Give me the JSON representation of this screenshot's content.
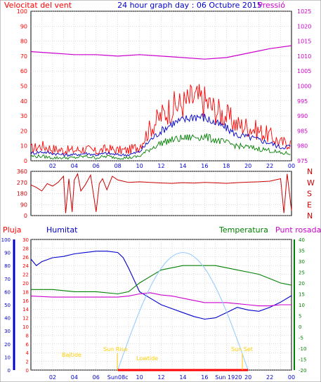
{
  "colors": {
    "red": "#ff0000",
    "blue": "#0000cc",
    "green": "#008000",
    "magenta": "#cc00cc",
    "grid": "#bbbbbb",
    "lightblue": "#99ccff",
    "yellow": "#ffcc00",
    "darkred": "#cc0000"
  },
  "header": {
    "left_label": "Velocitat del vent",
    "title": "24 hour graph day : 06 Octubre 2015",
    "right_label": "Pressió"
  },
  "lower_header": {
    "rain_label": "Pluja",
    "humidity_label": "Humitat",
    "temperature_label": "Temperatura",
    "dewpoint_label": "Punt rosada"
  },
  "annotations": {
    "sunrise": "Sun Rise",
    "sunset": "Sun Set",
    "high_tide": "Bajtide",
    "low_tide": "Lowtide",
    "sunrise_time": "Sun08c",
    "sunset_time": "Sun 1920"
  },
  "chart_data": [
    {
      "type": "line",
      "name": "wind-pressure",
      "x_ticks": [
        "02",
        "04",
        "06",
        "08",
        "10",
        "12",
        "14",
        "16",
        "18",
        "20",
        "22",
        "00"
      ],
      "ylim_left": [
        0,
        100
      ],
      "yticks_left": [
        "0",
        "10",
        "20",
        "30",
        "40",
        "50",
        "60",
        "70",
        "80",
        "90",
        "100"
      ],
      "ylim_right": [
        975,
        1025
      ],
      "yticks_right": [
        "975",
        "980",
        "985",
        "990",
        "995",
        "1000",
        "1005",
        "1010",
        "1015",
        "1020",
        "1025"
      ],
      "grid": true,
      "series": [
        {
          "name": "gust",
          "color": "#ff0000",
          "x": [
            0,
            1,
            2,
            3,
            4,
            5,
            6,
            7,
            8,
            9,
            10,
            11,
            12,
            13,
            14,
            15,
            16,
            17,
            18,
            19,
            20,
            21,
            22,
            23,
            24
          ],
          "y": [
            8,
            10,
            8,
            7,
            7,
            8,
            6,
            8,
            7,
            7,
            10,
            22,
            30,
            36,
            38,
            42,
            40,
            34,
            30,
            24,
            23,
            20,
            17,
            12,
            12
          ]
        },
        {
          "name": "average",
          "color": "#0000cc",
          "x": [
            0,
            1,
            2,
            3,
            4,
            5,
            6,
            7,
            8,
            9,
            10,
            11,
            12,
            13,
            14,
            15,
            16,
            17,
            18,
            19,
            20,
            21,
            22,
            23,
            24
          ],
          "y": [
            5,
            6,
            5,
            4,
            4,
            5,
            4,
            5,
            4,
            4,
            6,
            14,
            20,
            25,
            27,
            30,
            29,
            25,
            22,
            17,
            16,
            14,
            12,
            9,
            10
          ]
        },
        {
          "name": "minimum",
          "color": "#008000",
          "x": [
            0,
            1,
            2,
            3,
            4,
            5,
            6,
            7,
            8,
            9,
            10,
            11,
            12,
            13,
            14,
            15,
            16,
            17,
            18,
            19,
            20,
            21,
            22,
            23,
            24
          ],
          "y": [
            3,
            3,
            2,
            2,
            2,
            3,
            2,
            3,
            2,
            2,
            3,
            8,
            12,
            14,
            15,
            16,
            16,
            14,
            12,
            10,
            9,
            8,
            7,
            5,
            5
          ]
        },
        {
          "name": "pressure",
          "color": "#cc00cc",
          "x": [
            0,
            2,
            4,
            6,
            8,
            10,
            12,
            14,
            16,
            18,
            20,
            22,
            24
          ],
          "y": [
            1011.5,
            1011,
            1010.5,
            1010.5,
            1010,
            1010.5,
            1010,
            1009.5,
            1009,
            1009.5,
            1011,
            1012.5,
            1013.5
          ]
        }
      ]
    },
    {
      "type": "scatter",
      "name": "wind-direction",
      "x_ticks": [
        "02",
        "04",
        "06",
        "08",
        "10",
        "12",
        "14",
        "16",
        "18",
        "20",
        "22",
        "00"
      ],
      "ylim": [
        0,
        360
      ],
      "yticks": [
        "0",
        "90",
        "180",
        "270",
        "360"
      ],
      "compass": [
        "N",
        "W",
        "S",
        "E",
        "N"
      ],
      "grid": true,
      "series": [
        {
          "name": "direction",
          "color": "#cc0000",
          "x": [
            0,
            0.5,
            1,
            1.5,
            2,
            2.5,
            3,
            3.2,
            3.5,
            3.8,
            4,
            4.3,
            4.6,
            5,
            5.5,
            6,
            6.3,
            6.6,
            7,
            7.5,
            8,
            8.5,
            9,
            10,
            11,
            12,
            13,
            14,
            15,
            16,
            17,
            18,
            19,
            20,
            21,
            22,
            23,
            23.3,
            23.6,
            24
          ],
          "y": [
            250,
            230,
            200,
            260,
            240,
            270,
            320,
            20,
            300,
            30,
            290,
            340,
            200,
            250,
            330,
            30,
            260,
            300,
            210,
            320,
            290,
            280,
            270,
            275,
            270,
            265,
            262,
            268,
            264,
            270,
            266,
            262,
            268,
            272,
            275,
            280,
            300,
            20,
            340,
            40
          ]
        }
      ]
    },
    {
      "type": "line",
      "name": "rain-humidity-temperature",
      "x_ticks": [
        "02",
        "04",
        "06",
        "08",
        "10",
        "12",
        "14",
        "16",
        "18",
        "20",
        "22",
        "00"
      ],
      "ylim_rain": [
        0,
        30
      ],
      "yticks_rain": [
        "0",
        "2",
        "4",
        "6",
        "8",
        "10",
        "12",
        "14",
        "16",
        "18",
        "20",
        "22",
        "24",
        "26",
        "28",
        "30"
      ],
      "ylim_humidity": [
        0,
        100
      ],
      "yticks_humidity": [
        "0",
        "10",
        "20",
        "30",
        "40",
        "50",
        "60",
        "70",
        "80",
        "90",
        "100"
      ],
      "ylim_temperature": [
        -20,
        40
      ],
      "yticks_temperature": [
        "-20",
        "-15",
        "-10",
        "-5",
        "0",
        "5",
        "10",
        "15",
        "20",
        "25",
        "30",
        "35",
        "40"
      ],
      "grid": true,
      "series": [
        {
          "name": "humidity",
          "color": "#0000cc",
          "x": [
            0,
            0.5,
            1,
            2,
            3,
            4,
            5,
            6,
            7,
            8,
            8.5,
            9,
            10,
            11,
            12,
            13,
            14,
            15,
            16,
            17,
            18,
            19,
            20,
            21,
            22,
            23,
            24
          ],
          "y": [
            85,
            80,
            83,
            86,
            87,
            89,
            90,
            91,
            91,
            90,
            86,
            78,
            60,
            55,
            50,
            47,
            44,
            41,
            39,
            40,
            44,
            48,
            46,
            45,
            48,
            52,
            57
          ]
        },
        {
          "name": "temperature",
          "color": "#008000",
          "x": [
            0,
            2,
            4,
            6,
            8,
            9,
            10,
            11,
            12,
            13,
            14,
            15,
            16,
            17,
            18,
            19,
            20,
            21,
            22,
            23,
            24
          ],
          "y": [
            17,
            17,
            16,
            16,
            15,
            16,
            20,
            23,
            26,
            27,
            28,
            28,
            28,
            28,
            27,
            26,
            25,
            24,
            22,
            20,
            19
          ]
        },
        {
          "name": "dewpoint",
          "color": "#cc00cc",
          "x": [
            0,
            2,
            4,
            6,
            8,
            9,
            10,
            11,
            12,
            13,
            14,
            15,
            16,
            17,
            18,
            19,
            20,
            21,
            22,
            23,
            24
          ],
          "y": [
            14,
            13.5,
            13.5,
            13.5,
            13.5,
            14,
            15,
            15.5,
            14.5,
            14,
            13,
            12,
            11,
            11,
            11,
            10.5,
            10,
            9.5,
            9.5,
            10,
            10
          ]
        },
        {
          "name": "solar",
          "color": "#99ccff",
          "x": [
            8,
            9,
            10,
            11,
            12,
            13,
            14,
            15,
            16,
            17,
            18,
            19,
            20
          ],
          "y": [
            0,
            5,
            14,
            24,
            31,
            34,
            34,
            30,
            23,
            14,
            6,
            1,
            0
          ]
        },
        {
          "name": "rain",
          "color": "#ff0000",
          "x": [
            8,
            20
          ],
          "y": [
            0,
            0
          ]
        }
      ]
    }
  ]
}
